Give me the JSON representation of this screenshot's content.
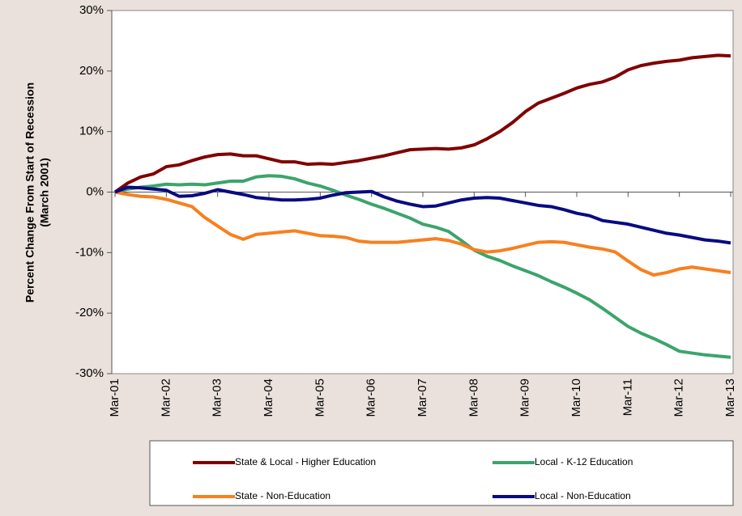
{
  "chart_data": {
    "type": "line",
    "y_label": [
      "Percent Change From Start of Recession",
      "(March 2001)"
    ],
    "categories": [
      "Mar-01",
      null,
      null,
      null,
      "Mar-02",
      null,
      null,
      null,
      "Mar-03",
      null,
      null,
      null,
      "Mar-04",
      null,
      null,
      null,
      "Mar-05",
      null,
      null,
      null,
      "Mar-06",
      null,
      null,
      null,
      "Mar-07",
      null,
      null,
      null,
      "Mar-08",
      null,
      null,
      null,
      "Mar-09",
      null,
      null,
      null,
      "Mar-10",
      null,
      null,
      null,
      "Mar-11",
      null,
      null,
      null,
      "Mar-12",
      null,
      null,
      null,
      "Mar-13"
    ],
    "series": [
      {
        "name": "State & Local - Higher Education",
        "color": "#800000",
        "values": [
          0,
          1.5,
          2.5,
          3,
          4.2,
          4.5,
          5.2,
          5.8,
          6.2,
          6.3,
          6,
          6,
          5.5,
          5,
          5,
          4.6,
          4.7,
          4.6,
          4.9,
          5.2,
          5.6,
          6,
          6.5,
          7,
          7.1,
          7.2,
          7.1,
          7.3,
          7.8,
          8.8,
          10,
          11.5,
          13.3,
          14.7,
          15.5,
          16.3,
          17.2,
          17.8,
          18.2,
          19,
          20.2,
          20.9,
          21.3,
          21.6,
          21.8,
          22.2,
          22.4,
          22.6,
          22.5
        ]
      },
      {
        "name": "Local - K-12 Education",
        "color": "#3ca46c",
        "values": [
          0,
          0.5,
          0.8,
          1.0,
          1.3,
          1.2,
          1.3,
          1.2,
          1.5,
          1.8,
          1.8,
          2.5,
          2.7,
          2.6,
          2.2,
          1.5,
          1.0,
          0.3,
          -0.5,
          -1.2,
          -2,
          -2.7,
          -3.5,
          -4.3,
          -5.3,
          -5.8,
          -6.5,
          -8,
          -9.6,
          -10.6,
          -11.3,
          -12.2,
          -13,
          -13.8,
          -14.8,
          -15.7,
          -16.7,
          -17.8,
          -19.2,
          -20.7,
          -22.2,
          -23.3,
          -24.2,
          -25.2,
          -26.3,
          -26.6,
          -26.9,
          -27.1,
          -27.3
        ]
      },
      {
        "name": "State - Non-Education",
        "color": "#f7801f",
        "values": [
          0,
          -0.4,
          -0.7,
          -0.8,
          -1.2,
          -1.8,
          -2.4,
          -4.2,
          -5.6,
          -7.0,
          -7.8,
          -7.0,
          -6.8,
          -6.6,
          -6.4,
          -6.8,
          -7.2,
          -7.3,
          -7.5,
          -8.1,
          -8.3,
          -8.3,
          -8.3,
          -8.1,
          -7.9,
          -7.7,
          -8,
          -8.6,
          -9.5,
          -9.9,
          -9.7,
          -9.3,
          -8.8,
          -8.3,
          -8.2,
          -8.3,
          -8.7,
          -9.1,
          -9.4,
          -9.9,
          -11.4,
          -12.8,
          -13.7,
          -13.3,
          -12.7,
          -12.4,
          -12.7,
          -13.0,
          -13.3
        ]
      },
      {
        "name": "Local - Non-Education",
        "color": "#0a0a82",
        "values": [
          0,
          0.8,
          0.7,
          0.5,
          0.3,
          -0.7,
          -0.6,
          -0.2,
          0.4,
          0,
          -0.4,
          -0.9,
          -1.1,
          -1.3,
          -1.3,
          -1.2,
          -1.0,
          -0.5,
          -0.1,
          0,
          0.1,
          -0.8,
          -1.5,
          -2,
          -2.4,
          -2.3,
          -1.8,
          -1.3,
          -1.0,
          -0.9,
          -1.0,
          -1.4,
          -1.8,
          -2.2,
          -2.4,
          -2.9,
          -3.5,
          -3.9,
          -4.7,
          -5.0,
          -5.3,
          -5.8,
          -6.3,
          -6.8,
          -7.1,
          -7.5,
          -7.9,
          -8.1,
          -8.4
        ]
      }
    ],
    "ylim": [
      -30,
      30
    ],
    "yticks": [
      {
        "value": -30,
        "label": "-30%"
      },
      {
        "value": -20,
        "label": "-20%"
      },
      {
        "value": -10,
        "label": "-10%"
      },
      {
        "value": 0,
        "label": "0%"
      },
      {
        "value": 10,
        "label": "10%"
      },
      {
        "value": 20,
        "label": "20%"
      },
      {
        "value": 30,
        "label": "30%"
      }
    ],
    "grid": false
  }
}
